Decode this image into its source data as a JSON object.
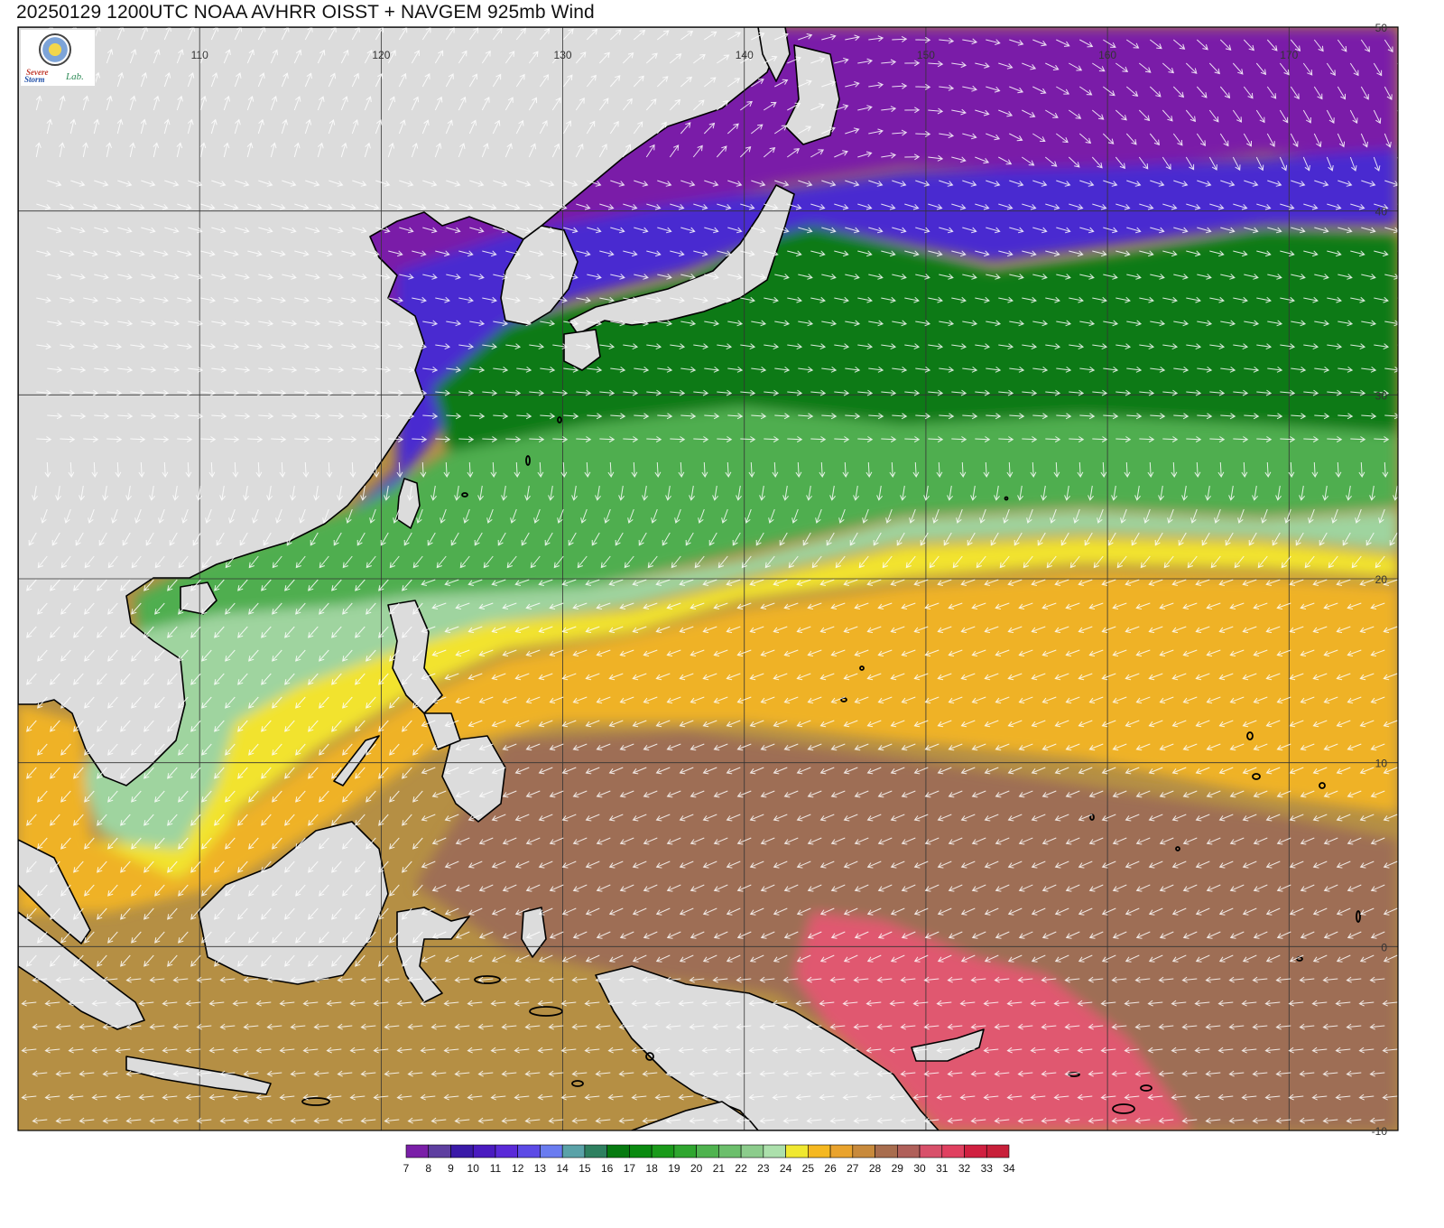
{
  "title": "20250129 1200UTC NOAA AVHRR OISST + NAVGEM 925mb Wind",
  "logo": {
    "line1": "Severe",
    "line2": "Storm",
    "lab": "Lab."
  },
  "map": {
    "lon_range": [
      100,
      176
    ],
    "lat_range": [
      -10,
      50
    ],
    "lon_tick_labels": [
      "110",
      "120",
      "130",
      "140",
      "150",
      "160",
      "170"
    ],
    "lat_tick_labels": [
      "50",
      "40",
      "30",
      "20",
      "10",
      "0",
      "-10"
    ],
    "land_color": "#dcdcdc",
    "coast_color": "#000000",
    "wind_vector_color": "#ffffff",
    "gridlines": true
  },
  "sst_field": {
    "units": "°C",
    "zones": [
      {
        "value": "9",
        "region": "Yellow Sea / Japan Sea north of 38N"
      },
      {
        "value": "13",
        "region": "Kuroshio front near 40N"
      },
      {
        "value": "20",
        "region": "Subtropical 25-38N"
      },
      {
        "value": "25",
        "region": "South China Sea north"
      },
      {
        "value": "27",
        "region": "Front near 20N"
      },
      {
        "value": "28",
        "region": "Tropical Pacific 10-20N"
      },
      {
        "value": "30",
        "region": "Equatorial belt"
      },
      {
        "value": "32",
        "region": "Warm pool near Papua"
      }
    ]
  },
  "colorbar": {
    "labels": [
      "7",
      "8",
      "9",
      "10",
      "11",
      "12",
      "13",
      "14",
      "15",
      "16",
      "17",
      "18",
      "19",
      "20",
      "21",
      "22",
      "23",
      "24",
      "25",
      "26",
      "27",
      "28",
      "29",
      "30",
      "31",
      "32",
      "33",
      "34"
    ],
    "colors": [
      "#7a1fa8",
      "#5e3fa0",
      "#3a1aa8",
      "#4a1bc0",
      "#5a2ad8",
      "#5c4ae6",
      "#6a7cf0",
      "#5aa2a8",
      "#2e8060",
      "#067a10",
      "#0a8a10",
      "#1a9a1a",
      "#2fa62f",
      "#4fb34f",
      "#6cbf6c",
      "#8ccc8c",
      "#ace0ac",
      "#f0e830",
      "#f5b820",
      "#e9a32d",
      "#c88a3c",
      "#a86d4e",
      "#b0605a",
      "#d8506a",
      "#e04060",
      "#d02040",
      "#c8203a"
    ]
  }
}
